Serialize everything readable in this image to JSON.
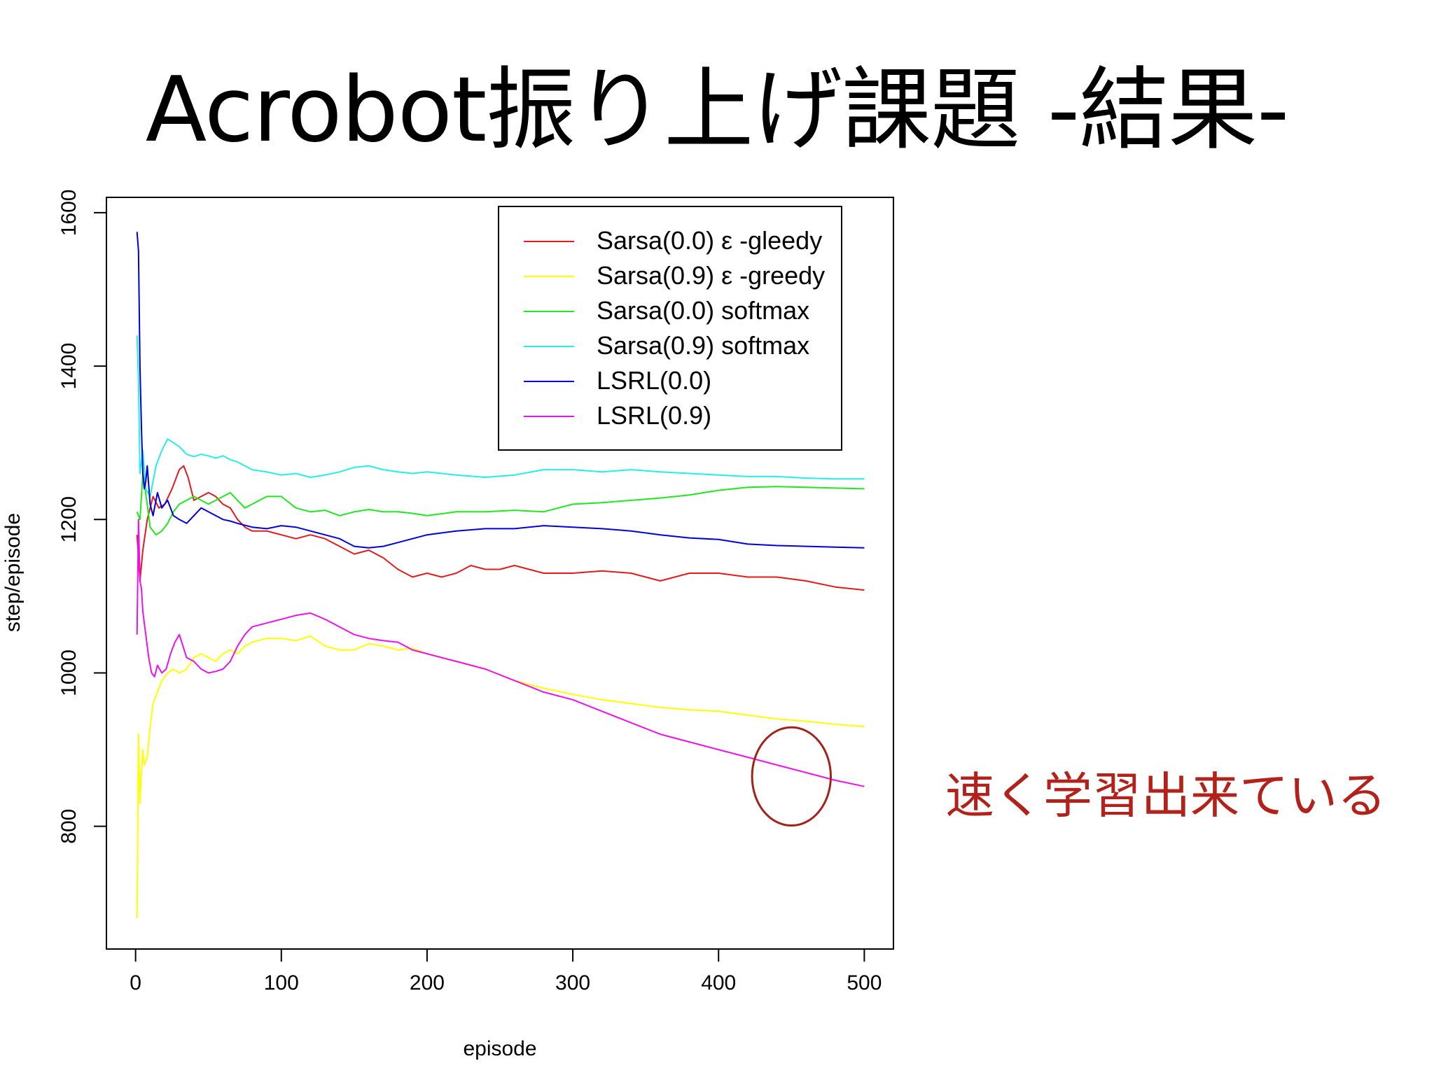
{
  "slide": {
    "title": "Acrobot振り上げ課題 -結果-",
    "annotation": "速く学習出来ている",
    "annotation_color": "#b2221a"
  },
  "chart_data": {
    "type": "line",
    "title": "",
    "xlabel": "episode",
    "ylabel": "step/episode",
    "xlim": [
      -20,
      520
    ],
    "ylim": [
      640,
      1620
    ],
    "xticks": [
      0,
      100,
      200,
      300,
      400,
      500
    ],
    "yticks": [
      800,
      1000,
      1200,
      1400,
      1600
    ],
    "grid": false,
    "legend_position": "top-right",
    "series": [
      {
        "name": "Sarsa(0.0) ε -gleedy",
        "color": "#e41a1c",
        "x": [
          1,
          3,
          5,
          8,
          12,
          16,
          20,
          25,
          30,
          33,
          36,
          40,
          45,
          50,
          55,
          60,
          65,
          70,
          75,
          80,
          90,
          100,
          110,
          120,
          130,
          140,
          150,
          160,
          170,
          180,
          190,
          200,
          210,
          220,
          230,
          240,
          250,
          260,
          270,
          280,
          300,
          320,
          340,
          360,
          380,
          400,
          420,
          440,
          460,
          480,
          500
        ],
        "y": [
          1180,
          1120,
          1160,
          1200,
          1230,
          1215,
          1220,
          1240,
          1265,
          1270,
          1255,
          1225,
          1230,
          1235,
          1230,
          1220,
          1215,
          1200,
          1190,
          1185,
          1185,
          1180,
          1175,
          1180,
          1175,
          1165,
          1155,
          1160,
          1150,
          1135,
          1125,
          1130,
          1125,
          1130,
          1140,
          1135,
          1135,
          1140,
          1135,
          1130,
          1130,
          1133,
          1130,
          1120,
          1130,
          1130,
          1125,
          1125,
          1120,
          1112,
          1108
        ]
      },
      {
        "name": "Sarsa(0.9) ε -greedy",
        "color": "#ffff00",
        "x": [
          1,
          2,
          3,
          4,
          5,
          6,
          8,
          10,
          12,
          15,
          18,
          22,
          26,
          30,
          35,
          40,
          45,
          50,
          55,
          60,
          65,
          70,
          75,
          80,
          90,
          100,
          110,
          120,
          130,
          140,
          150,
          160,
          170,
          180,
          190,
          200,
          220,
          240,
          260,
          280,
          300,
          320,
          340,
          360,
          380,
          400,
          420,
          440,
          460,
          480,
          500
        ],
        "y": [
          680,
          920,
          830,
          870,
          900,
          880,
          890,
          930,
          960,
          975,
          990,
          1000,
          1005,
          1000,
          1005,
          1020,
          1025,
          1020,
          1015,
          1025,
          1030,
          1025,
          1035,
          1040,
          1045,
          1045,
          1042,
          1048,
          1035,
          1030,
          1030,
          1038,
          1035,
          1030,
          1032,
          1025,
          1015,
          1005,
          990,
          980,
          972,
          965,
          960,
          955,
          952,
          950,
          945,
          940,
          937,
          933,
          930
        ]
      },
      {
        "name": "Sarsa(0.0) softmax",
        "color": "#1fe81f",
        "x": [
          1,
          3,
          5,
          8,
          10,
          14,
          18,
          22,
          26,
          30,
          35,
          40,
          45,
          50,
          55,
          60,
          65,
          70,
          75,
          80,
          90,
          100,
          110,
          120,
          130,
          140,
          150,
          160,
          170,
          180,
          190,
          200,
          220,
          240,
          260,
          280,
          300,
          320,
          340,
          360,
          380,
          400,
          420,
          440,
          460,
          480,
          500
        ],
        "y": [
          1210,
          1200,
          1260,
          1220,
          1190,
          1180,
          1185,
          1195,
          1210,
          1220,
          1225,
          1230,
          1225,
          1220,
          1225,
          1230,
          1235,
          1225,
          1215,
          1220,
          1230,
          1230,
          1215,
          1210,
          1212,
          1205,
          1210,
          1213,
          1210,
          1210,
          1208,
          1205,
          1210,
          1210,
          1212,
          1210,
          1220,
          1222,
          1225,
          1228,
          1232,
          1238,
          1242,
          1243,
          1242,
          1241,
          1240
        ]
      },
      {
        "name": "Sarsa(0.9) softmax",
        "color": "#22f0e8",
        "x": [
          1,
          2,
          3,
          5,
          7,
          10,
          14,
          18,
          22,
          26,
          30,
          35,
          40,
          45,
          50,
          55,
          60,
          65,
          70,
          75,
          80,
          90,
          100,
          110,
          120,
          130,
          140,
          150,
          160,
          170,
          180,
          190,
          200,
          220,
          240,
          260,
          280,
          300,
          320,
          340,
          360,
          380,
          400,
          420,
          440,
          460,
          480,
          500
        ],
        "y": [
          1440,
          1380,
          1260,
          1290,
          1240,
          1230,
          1270,
          1290,
          1305,
          1300,
          1295,
          1285,
          1282,
          1285,
          1283,
          1280,
          1283,
          1278,
          1275,
          1270,
          1265,
          1262,
          1258,
          1260,
          1255,
          1258,
          1262,
          1268,
          1270,
          1265,
          1262,
          1260,
          1262,
          1258,
          1255,
          1258,
          1265,
          1265,
          1262,
          1265,
          1262,
          1260,
          1258,
          1256,
          1256,
          1254,
          1253,
          1253
        ]
      },
      {
        "name": "LSRL(0.0)",
        "color": "#0000dd",
        "x": [
          1,
          2,
          3,
          4,
          5,
          6,
          7,
          8,
          10,
          12,
          15,
          18,
          22,
          26,
          30,
          35,
          40,
          45,
          50,
          55,
          60,
          65,
          70,
          80,
          90,
          100,
          110,
          120,
          130,
          140,
          150,
          160,
          170,
          180,
          190,
          200,
          220,
          240,
          260,
          280,
          300,
          320,
          340,
          360,
          380,
          400,
          420,
          440,
          460,
          480,
          500
        ],
        "y": [
          1575,
          1550,
          1400,
          1320,
          1260,
          1240,
          1250,
          1270,
          1220,
          1205,
          1235,
          1215,
          1225,
          1205,
          1200,
          1195,
          1205,
          1215,
          1210,
          1205,
          1200,
          1198,
          1195,
          1190,
          1188,
          1192,
          1190,
          1185,
          1180,
          1175,
          1165,
          1163,
          1165,
          1170,
          1175,
          1180,
          1185,
          1188,
          1188,
          1192,
          1190,
          1188,
          1185,
          1180,
          1176,
          1174,
          1168,
          1166,
          1165,
          1164,
          1163
        ]
      },
      {
        "name": "LSRL(0.9)",
        "color": "#ee11ee",
        "x": [
          1,
          2,
          3,
          4,
          5,
          7,
          9,
          11,
          13,
          15,
          18,
          21,
          24,
          27,
          30,
          35,
          40,
          45,
          50,
          55,
          60,
          65,
          70,
          75,
          80,
          90,
          100,
          110,
          120,
          130,
          140,
          150,
          160,
          170,
          180,
          190,
          200,
          220,
          240,
          260,
          280,
          300,
          320,
          340,
          360,
          380,
          400,
          420,
          440,
          460,
          480,
          500
        ],
        "y": [
          1050,
          1200,
          1120,
          1110,
          1080,
          1050,
          1020,
          1000,
          995,
          1010,
          1000,
          1005,
          1025,
          1040,
          1050,
          1020,
          1015,
          1005,
          1000,
          1002,
          1005,
          1015,
          1035,
          1050,
          1060,
          1065,
          1070,
          1075,
          1078,
          1070,
          1060,
          1050,
          1045,
          1042,
          1040,
          1030,
          1025,
          1015,
          1005,
          990,
          975,
          965,
          950,
          935,
          920,
          910,
          900,
          890,
          880,
          870,
          860,
          852
        ]
      }
    ],
    "highlight_circle": {
      "cx": 450,
      "cy": 865,
      "rx": 27,
      "ry": 64,
      "color": "#a3231a"
    }
  }
}
